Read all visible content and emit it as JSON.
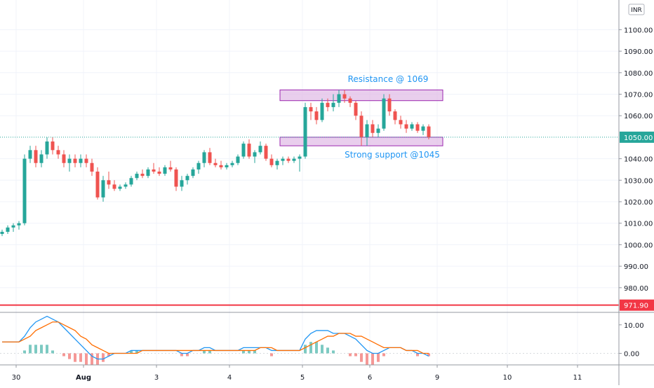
{
  "currency_badge": "INR",
  "annotations": {
    "resistance_label": "Resistance @ 1069",
    "support_label": "Strong support @1045"
  },
  "colors": {
    "up": "#26a69a",
    "down": "#ef5350",
    "zone_fill": "#e1bee7",
    "zone_stroke": "#9c27b0",
    "annotation_text": "#2196f3",
    "price_line": "#f23645",
    "last_price_bg": "#26a69a",
    "macd_line": "#2196f3",
    "signal_line": "#ff6d00",
    "grid": "#f0f3fa"
  },
  "chart_data": [
    {
      "type": "candlestick",
      "title": "",
      "x_tick_labels": [
        "30",
        "Aug",
        "3",
        "4",
        "5",
        "6",
        "9",
        "10",
        "11"
      ],
      "y_tick_labels": [
        "1100.00",
        "1090.00",
        "1080.00",
        "1070.00",
        "1060.00",
        "1040.00",
        "1030.00",
        "1020.00",
        "1010.00",
        "1000.00",
        "990.00",
        "980.00"
      ],
      "ylim": [
        968,
        1111
      ],
      "last_price_label": "1050.00",
      "level_line_label": "971.90",
      "zones": [
        {
          "name": "resistance",
          "low": 1067,
          "high": 1072
        },
        {
          "name": "support",
          "low": 1046,
          "high": 1050
        }
      ],
      "ohlc": [
        [
          1005,
          1007,
          1004,
          1006
        ],
        [
          1006,
          1009,
          1005,
          1008
        ],
        [
          1008,
          1010,
          1006,
          1009
        ],
        [
          1009,
          1011,
          1007,
          1010
        ],
        [
          1010,
          1042,
          1009,
          1040
        ],
        [
          1040,
          1046,
          1038,
          1044
        ],
        [
          1044,
          1046,
          1036,
          1038
        ],
        [
          1038,
          1044,
          1036,
          1042
        ],
        [
          1042,
          1050,
          1040,
          1048
        ],
        [
          1048,
          1050,
          1042,
          1044
        ],
        [
          1044,
          1046,
          1040,
          1042
        ],
        [
          1042,
          1044,
          1036,
          1038
        ],
        [
          1038,
          1042,
          1034,
          1040
        ],
        [
          1040,
          1042,
          1036,
          1038
        ],
        [
          1038,
          1042,
          1036,
          1040
        ],
        [
          1040,
          1042,
          1036,
          1038
        ],
        [
          1038,
          1040,
          1032,
          1034
        ],
        [
          1034,
          1036,
          1021,
          1022
        ],
        [
          1022,
          1032,
          1020,
          1030
        ],
        [
          1030,
          1034,
          1026,
          1028
        ],
        [
          1028,
          1030,
          1025,
          1026
        ],
        [
          1026,
          1028,
          1025,
          1027
        ],
        [
          1027,
          1029,
          1026,
          1028
        ],
        [
          1028,
          1032,
          1027,
          1031
        ],
        [
          1031,
          1034,
          1030,
          1033
        ],
        [
          1033,
          1035,
          1031,
          1032
        ],
        [
          1032,
          1036,
          1031,
          1035
        ],
        [
          1035,
          1038,
          1033,
          1034
        ],
        [
          1034,
          1036,
          1032,
          1033
        ],
        [
          1033,
          1037,
          1032,
          1036
        ],
        [
          1036,
          1039,
          1034,
          1035
        ],
        [
          1035,
          1036,
          1025,
          1027
        ],
        [
          1027,
          1032,
          1025,
          1030
        ],
        [
          1030,
          1033,
          1028,
          1032
        ],
        [
          1032,
          1036,
          1031,
          1035
        ],
        [
          1035,
          1039,
          1033,
          1038
        ],
        [
          1038,
          1044,
          1036,
          1043
        ],
        [
          1043,
          1045,
          1037,
          1038
        ],
        [
          1038,
          1040,
          1036,
          1037
        ],
        [
          1037,
          1039,
          1035,
          1036
        ],
        [
          1036,
          1038,
          1035,
          1037
        ],
        [
          1037,
          1039,
          1036,
          1038
        ],
        [
          1038,
          1042,
          1037,
          1041
        ],
        [
          1041,
          1048,
          1040,
          1047
        ],
        [
          1047,
          1049,
          1040,
          1041
        ],
        [
          1041,
          1044,
          1038,
          1043
        ],
        [
          1043,
          1048,
          1042,
          1046
        ],
        [
          1046,
          1047,
          1039,
          1040
        ],
        [
          1040,
          1042,
          1036,
          1037
        ],
        [
          1037,
          1040,
          1035,
          1039
        ],
        [
          1039,
          1041,
          1037,
          1040
        ],
        [
          1040,
          1041,
          1038,
          1039
        ],
        [
          1039,
          1041,
          1038,
          1040
        ],
        [
          1040,
          1042,
          1034,
          1041
        ],
        [
          1041,
          1066,
          1040,
          1064
        ],
        [
          1064,
          1066,
          1058,
          1062
        ],
        [
          1062,
          1064,
          1056,
          1058
        ],
        [
          1058,
          1068,
          1057,
          1066
        ],
        [
          1066,
          1068,
          1062,
          1064
        ],
        [
          1064,
          1070,
          1062,
          1066
        ],
        [
          1066,
          1072,
          1064,
          1070
        ],
        [
          1070,
          1072,
          1066,
          1068
        ],
        [
          1068,
          1069,
          1064,
          1066
        ],
        [
          1066,
          1067,
          1058,
          1060
        ],
        [
          1060,
          1062,
          1046,
          1050
        ],
        [
          1050,
          1058,
          1046,
          1056
        ],
        [
          1056,
          1058,
          1050,
          1052
        ],
        [
          1052,
          1056,
          1050,
          1054
        ],
        [
          1054,
          1070,
          1053,
          1068
        ],
        [
          1068,
          1070,
          1060,
          1062
        ],
        [
          1062,
          1063,
          1056,
          1058
        ],
        [
          1058,
          1060,
          1054,
          1056
        ],
        [
          1056,
          1058,
          1052,
          1054
        ],
        [
          1054,
          1057,
          1053,
          1056
        ],
        [
          1056,
          1057,
          1052,
          1053
        ],
        [
          1053,
          1056,
          1051,
          1055
        ],
        [
          1055,
          1056,
          1049,
          1050
        ]
      ]
    },
    {
      "type": "line",
      "title": "",
      "y_tick_labels": [
        "10.00",
        "0.00"
      ],
      "ylim": [
        -5,
        15
      ],
      "series": [
        {
          "values": [
            4,
            4,
            4,
            4,
            6,
            9,
            11,
            12,
            13,
            12,
            11,
            9,
            7,
            5,
            3,
            1,
            -1,
            -2,
            -2,
            -1,
            0,
            0,
            0,
            1,
            1,
            1,
            1,
            1,
            1,
            1,
            1,
            1,
            0,
            0,
            1,
            1,
            2,
            2,
            1,
            1,
            1,
            1,
            1,
            2,
            2,
            2,
            2,
            2,
            1,
            1,
            1,
            1,
            1,
            1,
            5,
            7,
            8,
            8,
            8,
            7,
            7,
            7,
            6,
            5,
            3,
            1,
            0,
            0,
            1,
            2,
            2,
            2,
            1,
            1,
            0,
            0,
            -1
          ]
        },
        {
          "values": [
            4,
            4,
            4,
            4,
            5,
            6,
            8,
            9,
            10,
            11,
            11,
            10,
            9,
            8,
            6,
            5,
            3,
            2,
            1,
            0,
            0,
            0,
            0,
            0,
            0,
            1,
            1,
            1,
            1,
            1,
            1,
            1,
            1,
            1,
            1,
            1,
            1,
            1,
            1,
            1,
            1,
            1,
            1,
            1,
            1,
            1,
            2,
            2,
            2,
            1,
            1,
            1,
            1,
            1,
            2,
            3,
            4,
            5,
            6,
            6,
            7,
            7,
            7,
            6,
            6,
            5,
            4,
            3,
            2,
            2,
            2,
            2,
            1,
            1,
            1,
            0,
            0
          ]
        }
      ],
      "histogram": [
        0,
        0,
        0,
        0,
        1,
        3,
        3,
        3,
        3,
        1,
        0,
        -1,
        -2,
        -3,
        -3,
        -4,
        -4,
        -4,
        -3,
        -1,
        0,
        0,
        0,
        1,
        1,
        0,
        0,
        0,
        0,
        0,
        0,
        0,
        -1,
        -1,
        0,
        0,
        1,
        1,
        0,
        0,
        0,
        0,
        0,
        1,
        1,
        1,
        0,
        0,
        -1,
        0,
        0,
        0,
        0,
        0,
        3,
        4,
        4,
        3,
        2,
        1,
        0,
        0,
        -1,
        -1,
        -3,
        -4,
        -4,
        -3,
        -1,
        0,
        0,
        0,
        0,
        0,
        -1,
        0,
        -1
      ]
    }
  ]
}
